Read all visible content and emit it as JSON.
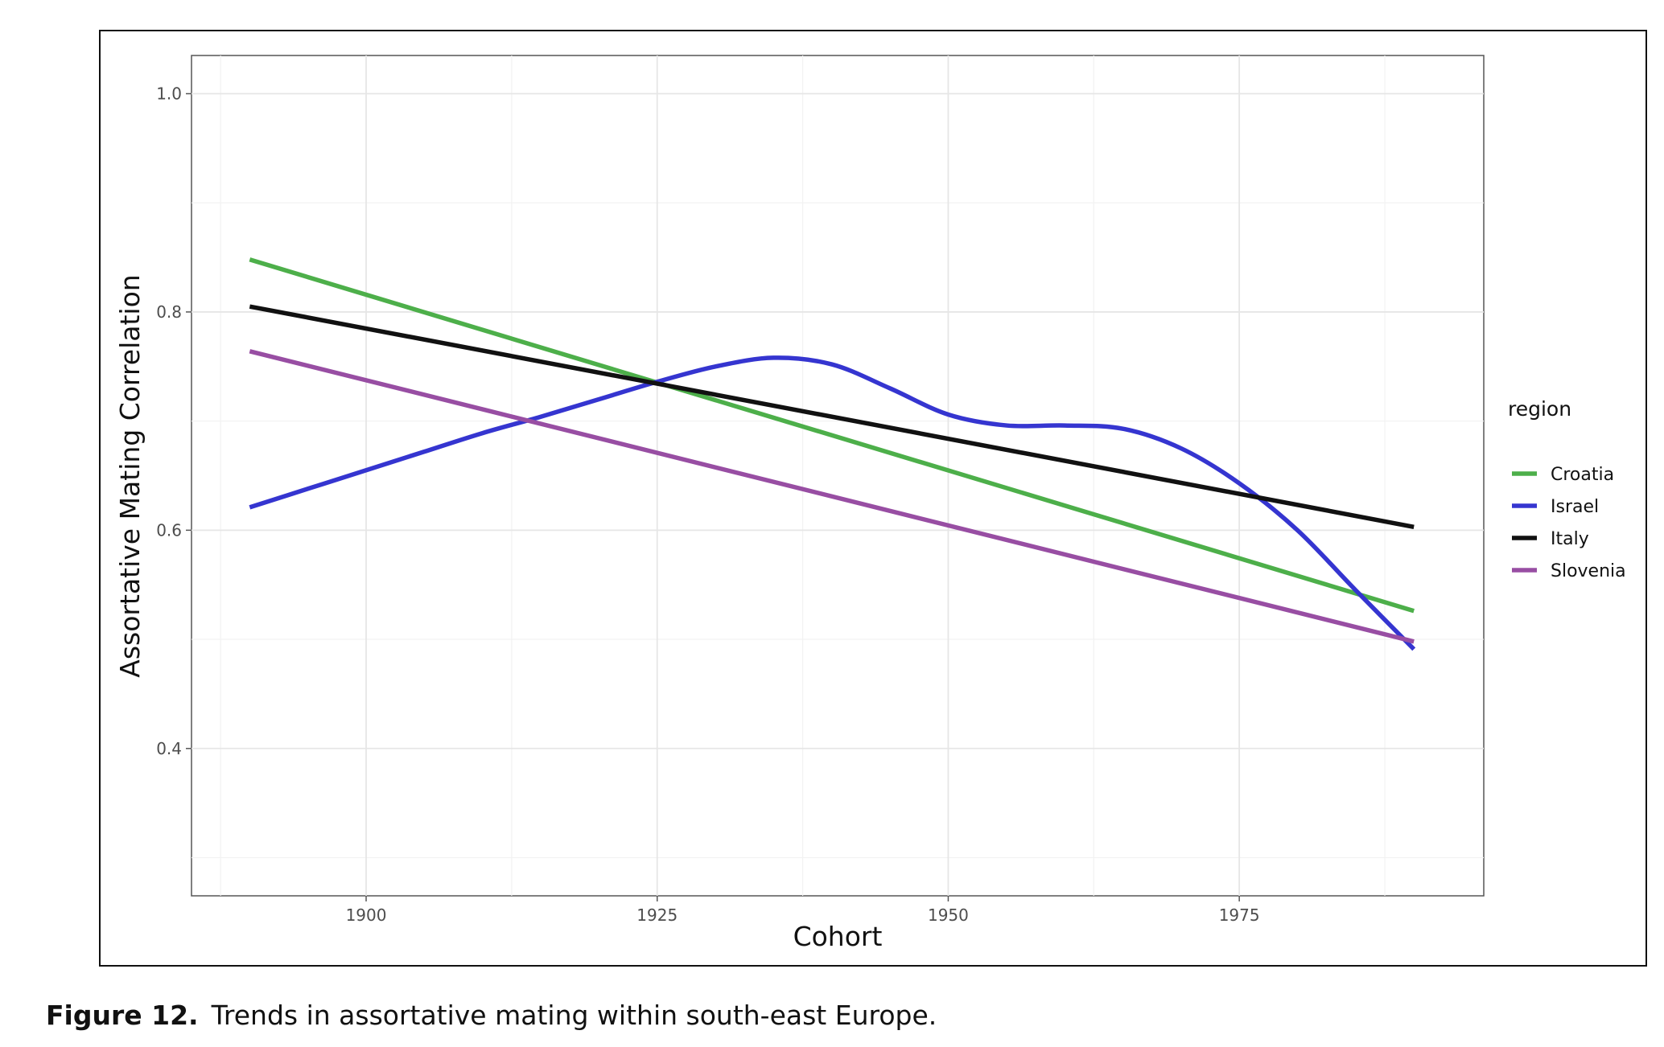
{
  "caption": {
    "label": "Figure 12.",
    "text": "Trends in assortative mating within south-east Europe."
  },
  "chart_data": {
    "type": "line",
    "title": "",
    "xlabel": "Cohort",
    "ylabel": "Assortative Mating Correlation",
    "xlim": [
      1885,
      1996
    ],
    "ylim": [
      0.265,
      1.035
    ],
    "x_ticks": [
      1900,
      1925,
      1950,
      1975
    ],
    "x_tick_labels": [
      "1900",
      "1925",
      "1950",
      "1975"
    ],
    "x_minor_ticks": [
      1887.5,
      1912.5,
      1937.5,
      1962.5,
      1987.5
    ],
    "y_ticks": [
      0.4,
      0.6,
      0.8,
      1.0
    ],
    "y_tick_labels": [
      "0.4",
      "0.6",
      "0.8",
      "1.0"
    ],
    "y_minor_ticks": [
      0.3,
      0.5,
      0.7,
      0.9
    ],
    "grid": true,
    "legend": {
      "title": "region",
      "position": "right"
    },
    "series": [
      {
        "name": "Croatia",
        "color": "#4daf4a",
        "x": [
          1890,
          1990
        ],
        "y": [
          0.848,
          0.526
        ]
      },
      {
        "name": "Israel",
        "color": "#3535d0",
        "x": [
          1890,
          1895,
          1900,
          1905,
          1910,
          1915,
          1920,
          1925,
          1930,
          1935,
          1940,
          1945,
          1950,
          1955,
          1960,
          1965,
          1970,
          1975,
          1980,
          1985,
          1990
        ],
        "y": [
          0.621,
          0.638,
          0.655,
          0.672,
          0.689,
          0.704,
          0.72,
          0.736,
          0.75,
          0.758,
          0.752,
          0.73,
          0.706,
          0.696,
          0.696,
          0.693,
          0.675,
          0.643,
          0.6,
          0.545,
          0.491
        ]
      },
      {
        "name": "Italy",
        "color": "#111111",
        "x": [
          1890,
          1990
        ],
        "y": [
          0.805,
          0.603
        ]
      },
      {
        "name": "Slovenia",
        "color": "#984ea3",
        "x": [
          1890,
          1990
        ],
        "y": [
          0.764,
          0.498
        ]
      }
    ]
  }
}
